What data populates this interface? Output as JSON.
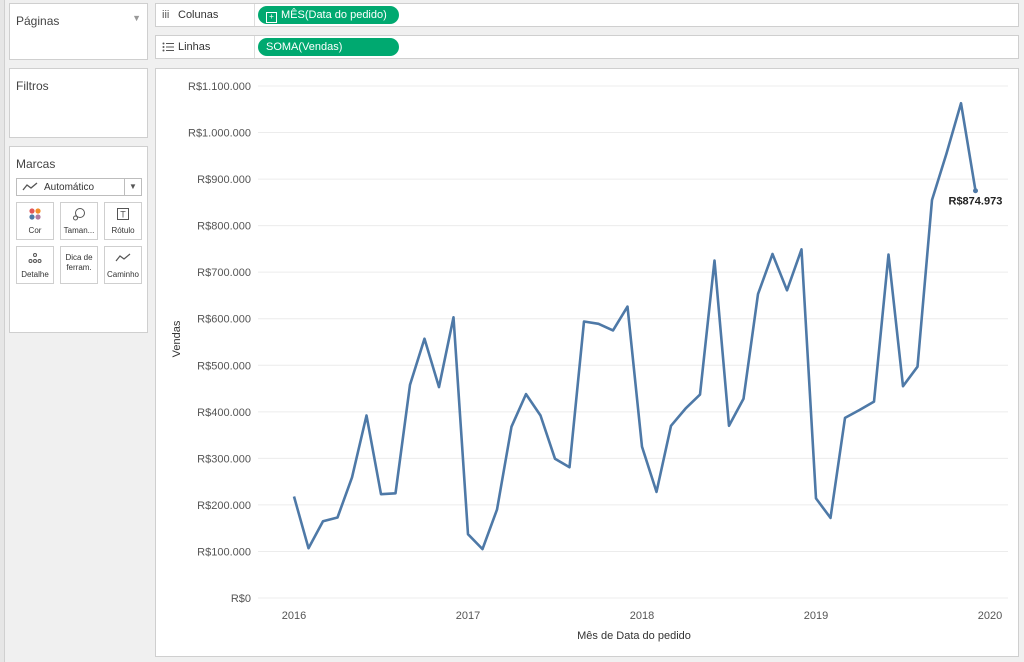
{
  "pages_card": {
    "title": "Páginas"
  },
  "filters_card": {
    "title": "Filtros"
  },
  "marks_card": {
    "title": "Marcas",
    "mark_type": "Automático",
    "buttons": [
      {
        "label": "Cor",
        "icon": "color-icon"
      },
      {
        "label": "Taman...",
        "icon": "size-icon"
      },
      {
        "label": "Rótulo",
        "icon": "label-icon"
      },
      {
        "label": "Detalhe",
        "icon": "detail-icon"
      },
      {
        "label_line1": "Dica de",
        "label_line2": "ferram.",
        "icon": "tooltip-icon"
      },
      {
        "label": "Caminho",
        "icon": "path-icon"
      }
    ]
  },
  "columns_shelf": {
    "icon": "iii",
    "label": "Colunas",
    "pill": "MÊS(Data do pedido)"
  },
  "rows_shelf": {
    "label": "Linhas",
    "pill": "SOMA(Vendas)"
  },
  "colors": {
    "line": "#4e79a7",
    "pill": "#00a970"
  },
  "chart_data": {
    "type": "line",
    "xlabel": "Mês de Data do pedido",
    "ylabel": "Vendas",
    "ylim": [
      0,
      1100000
    ],
    "y_ticks": [
      "R$0",
      "R$100.000",
      "R$200.000",
      "R$300.000",
      "R$400.000",
      "R$500.000",
      "R$600.000",
      "R$700.000",
      "R$800.000",
      "R$900.000",
      "R$1.000.000",
      "R$1.100.000"
    ],
    "x_ticks": [
      "2016",
      "2017",
      "2018",
      "2019",
      "2020"
    ],
    "grid": true,
    "values": [
      218000,
      107000,
      165000,
      173000,
      259000,
      392000,
      223000,
      225000,
      458000,
      557000,
      453000,
      603000,
      137000,
      105000,
      190000,
      368000,
      438000,
      392000,
      299000,
      281000,
      594000,
      589000,
      575000,
      626000,
      325000,
      228000,
      370000,
      407000,
      437000,
      725000,
      370000,
      428000,
      653000,
      739000,
      661000,
      749000,
      214000,
      172000,
      387000,
      404000,
      422000,
      738000,
      455000,
      497000,
      855000,
      955000,
      1063000,
      874973
    ],
    "last_label": "R$874.973"
  }
}
